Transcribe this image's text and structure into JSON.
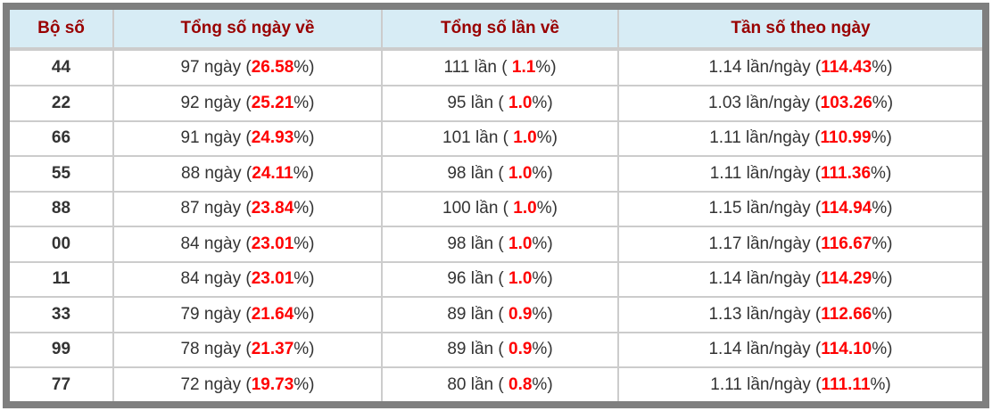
{
  "colors": {
    "header_bg": "#d7ecf5",
    "header_text": "#990000",
    "percent_red": "#ff0000",
    "body_text": "#333333",
    "outer_border": "#7f7f7f",
    "grid_line": "#cccccc"
  },
  "table": {
    "columns": [
      {
        "key": "pair",
        "label": "Bộ số"
      },
      {
        "key": "days",
        "label": "Tổng số ngày về"
      },
      {
        "key": "times",
        "label": "Tổng số lần về"
      },
      {
        "key": "freq",
        "label": "Tần số theo ngày"
      }
    ],
    "rows": [
      {
        "pair": "44",
        "days": {
          "pre": "97 ngày (",
          "red": "26.58",
          "post": "%)"
        },
        "times": {
          "pre": "111 lần ( ",
          "red": "1.1",
          "post": "%)"
        },
        "freq": {
          "pre": "1.14 lần/ngày (",
          "red": "114.43",
          "post": "%)"
        }
      },
      {
        "pair": "22",
        "days": {
          "pre": "92 ngày (",
          "red": "25.21",
          "post": "%)"
        },
        "times": {
          "pre": "95 lần ( ",
          "red": "1.0",
          "post": "%)"
        },
        "freq": {
          "pre": "1.03 lần/ngày (",
          "red": "103.26",
          "post": "%)"
        }
      },
      {
        "pair": "66",
        "days": {
          "pre": "91 ngày (",
          "red": "24.93",
          "post": "%)"
        },
        "times": {
          "pre": "101 lần ( ",
          "red": "1.0",
          "post": "%)"
        },
        "freq": {
          "pre": "1.11 lần/ngày (",
          "red": "110.99",
          "post": "%)"
        }
      },
      {
        "pair": "55",
        "days": {
          "pre": "88 ngày (",
          "red": "24.11",
          "post": "%)"
        },
        "times": {
          "pre": "98 lần ( ",
          "red": "1.0",
          "post": "%)"
        },
        "freq": {
          "pre": "1.11 lần/ngày (",
          "red": "111.36",
          "post": "%)"
        }
      },
      {
        "pair": "88",
        "days": {
          "pre": "87 ngày (",
          "red": "23.84",
          "post": "%)"
        },
        "times": {
          "pre": "100 lần ( ",
          "red": "1.0",
          "post": "%)"
        },
        "freq": {
          "pre": "1.15 lần/ngày (",
          "red": "114.94",
          "post": "%)"
        }
      },
      {
        "pair": "00",
        "days": {
          "pre": "84 ngày (",
          "red": "23.01",
          "post": "%)"
        },
        "times": {
          "pre": "98 lần ( ",
          "red": "1.0",
          "post": "%)"
        },
        "freq": {
          "pre": "1.17 lần/ngày (",
          "red": "116.67",
          "post": "%)"
        }
      },
      {
        "pair": "11",
        "days": {
          "pre": "84 ngày (",
          "red": "23.01",
          "post": "%)"
        },
        "times": {
          "pre": "96 lần ( ",
          "red": "1.0",
          "post": "%)"
        },
        "freq": {
          "pre": "1.14 lần/ngày (",
          "red": "114.29",
          "post": "%)"
        }
      },
      {
        "pair": "33",
        "days": {
          "pre": "79 ngày (",
          "red": "21.64",
          "post": "%)"
        },
        "times": {
          "pre": "89 lần ( ",
          "red": "0.9",
          "post": "%)"
        },
        "freq": {
          "pre": "1.13 lần/ngày (",
          "red": "112.66",
          "post": "%)"
        }
      },
      {
        "pair": "99",
        "days": {
          "pre": "78 ngày (",
          "red": "21.37",
          "post": "%)"
        },
        "times": {
          "pre": "89 lần ( ",
          "red": "0.9",
          "post": "%)"
        },
        "freq": {
          "pre": "1.14 lần/ngày (",
          "red": "114.10",
          "post": "%)"
        }
      },
      {
        "pair": "77",
        "days": {
          "pre": "72 ngày (",
          "red": "19.73",
          "post": "%)"
        },
        "times": {
          "pre": "80 lần ( ",
          "red": "0.8",
          "post": "%)"
        },
        "freq": {
          "pre": "1.11 lần/ngày (",
          "red": "111.11",
          "post": "%)"
        }
      }
    ]
  }
}
